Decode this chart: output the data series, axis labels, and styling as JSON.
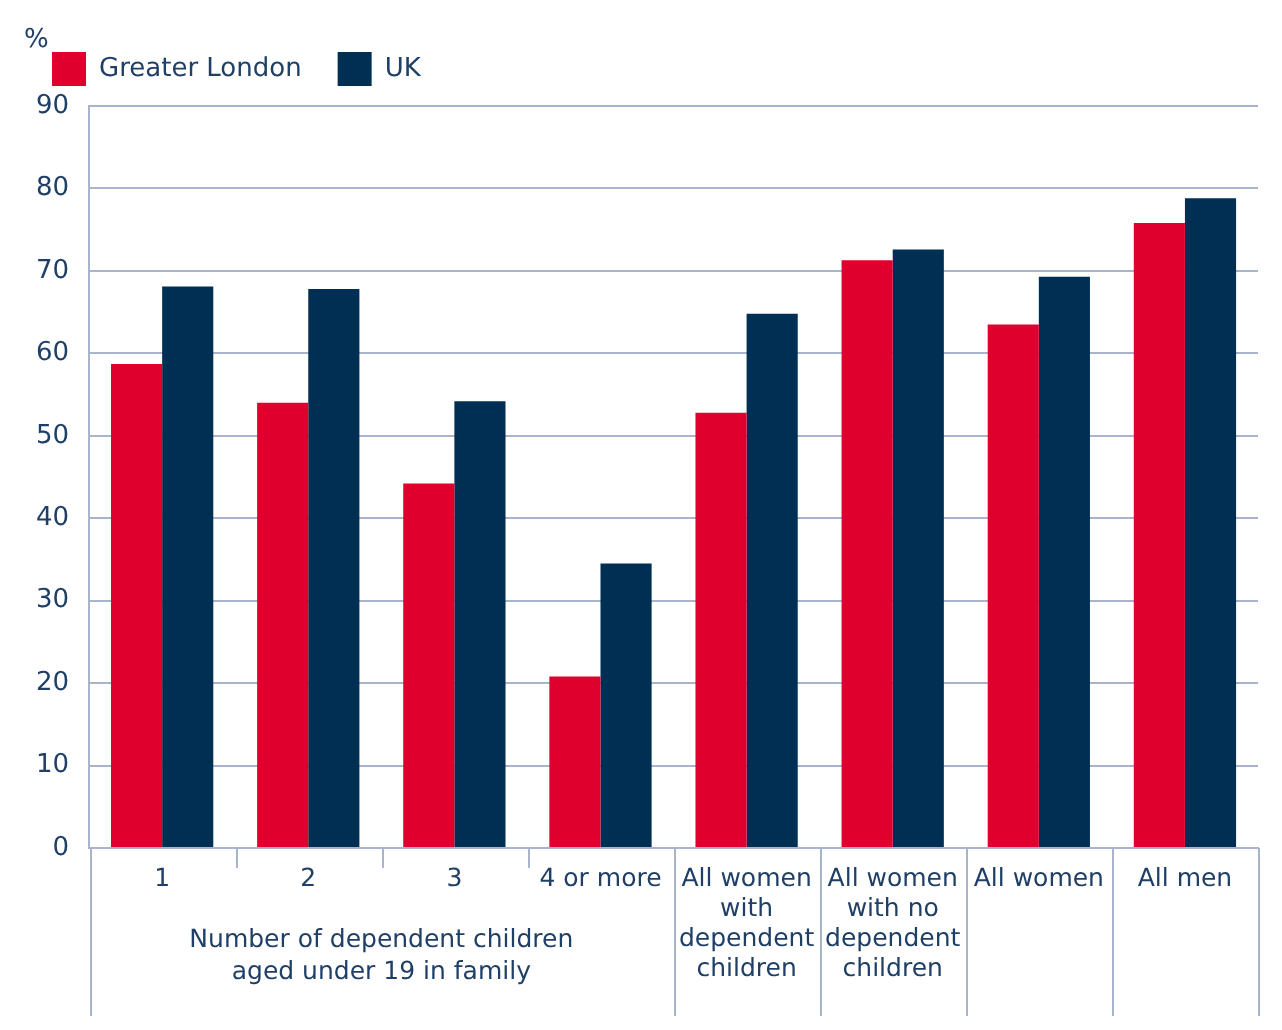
{
  "chart_data": {
    "type": "bar",
    "ylabel": "%",
    "categories": [
      "1",
      "2",
      "3",
      "4 or more",
      "All women with dependent children",
      "All women with no dependent children",
      "All women",
      "All men"
    ],
    "series": [
      {
        "name": "Greater London",
        "color": "#e0002d",
        "values": [
          58.7,
          54.0,
          44.2,
          20.8,
          52.8,
          71.3,
          63.5,
          75.8
        ]
      },
      {
        "name": "UK",
        "color": "#002f54",
        "values": [
          68.1,
          67.8,
          54.2,
          34.5,
          64.8,
          72.6,
          69.3,
          78.8
        ]
      }
    ],
    "ylim": [
      0,
      90
    ],
    "yticks": [
      0,
      10,
      20,
      30,
      40,
      50,
      60,
      70,
      80,
      90
    ],
    "grid": "y",
    "legend": "top left",
    "annotations": [
      "Number of dependent children aged under 19 in family"
    ]
  }
}
